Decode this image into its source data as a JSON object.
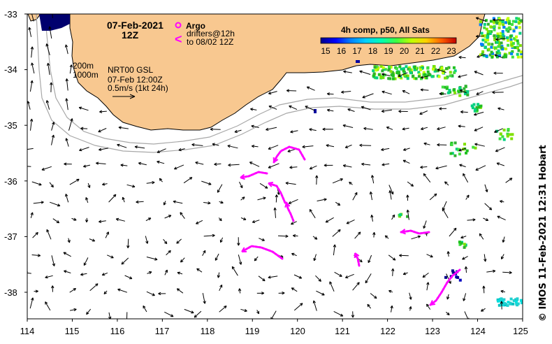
{
  "map": {
    "date_title": "07-Feb-2021",
    "time_title": "12Z",
    "argo_label": "Argo",
    "drifters_line1": "drifters@12h",
    "drifters_line2": "to 08/02 12Z",
    "drifter_glyph": "<",
    "depth_200": "200m",
    "depth_1000": "1000m",
    "product": "NRT00 GSL",
    "product_time": "07-Feb 12:00Z",
    "scale": "0.5m/s (1kt 24h)",
    "credit": "©  IMOS 11-Feb-2021 12:31 Hobart",
    "colorbar": {
      "title": "4h comp, p50, All Sats",
      "ticks": [
        "15",
        "16",
        "17",
        "18",
        "19",
        "20",
        "21",
        "22",
        "23"
      ],
      "colors": [
        "#00008b",
        "#0000ff",
        "#0080ff",
        "#00d0ff",
        "#00ffb0",
        "#40ff40",
        "#c0ff00",
        "#ffd000",
        "#ff6000",
        "#c00000"
      ]
    },
    "axes": {
      "lon_ticks": [
        "114",
        "115",
        "116",
        "117",
        "118",
        "119",
        "120",
        "121",
        "122",
        "123",
        "124",
        "125"
      ],
      "lat_ticks": [
        "-33",
        "-34",
        "-35",
        "-36",
        "-37",
        "-38"
      ]
    },
    "land_color": "#f8c890",
    "drifter_color": "#ff00ff"
  }
}
